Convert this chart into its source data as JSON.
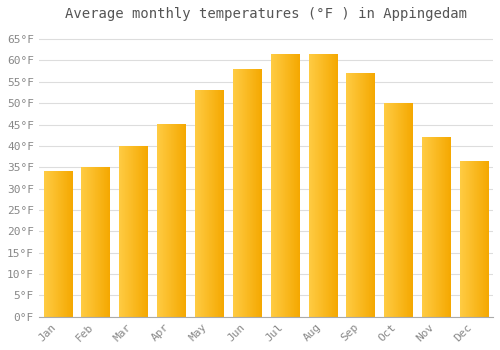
{
  "title": "Average monthly temperatures (°F ) in Appingedam",
  "months": [
    "Jan",
    "Feb",
    "Mar",
    "Apr",
    "May",
    "Jun",
    "Jul",
    "Aug",
    "Sep",
    "Oct",
    "Nov",
    "Dec"
  ],
  "values": [
    34,
    35,
    40,
    45,
    53,
    58,
    61.5,
    61.5,
    57,
    50,
    42,
    36.5
  ],
  "bar_color_left": "#FFCC44",
  "bar_color_right": "#F5A800",
  "background_color": "#FFFFFF",
  "grid_color": "#DDDDDD",
  "ylim": [
    0,
    68
  ],
  "yticks": [
    0,
    5,
    10,
    15,
    20,
    25,
    30,
    35,
    40,
    45,
    50,
    55,
    60,
    65
  ],
  "title_fontsize": 10,
  "tick_fontsize": 8,
  "font_family": "monospace",
  "title_color": "#555555",
  "tick_color": "#888888"
}
